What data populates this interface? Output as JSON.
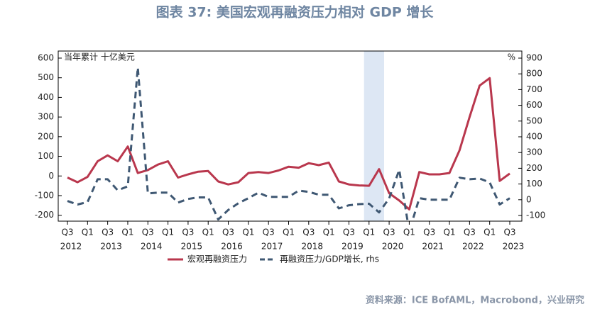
{
  "chart_data": {
    "type": "line",
    "title": "图表 37: 美国宏观再融资压力相对 GDP 增长",
    "unit_left": "当年累计 十亿美元",
    "unit_right": "%",
    "source": "资料来源：ICE BofAML，Macrobond，兴业研究",
    "categories": [
      "Q3",
      null,
      "Q1",
      null,
      "Q3",
      null,
      "Q1",
      null,
      "Q3",
      null,
      "Q1",
      null,
      "Q3",
      null,
      "Q1",
      null,
      "Q3",
      null,
      "Q1",
      null,
      "Q3",
      null,
      "Q1",
      null,
      "Q3",
      null,
      "Q1",
      null,
      "Q3",
      null,
      "Q1",
      null,
      "Q3",
      null,
      "Q1",
      null,
      "Q3",
      null,
      "Q1",
      null,
      "Q3",
      null,
      "Q1",
      null,
      "Q3"
    ],
    "years": [
      "2012",
      null,
      null,
      null,
      "2013",
      null,
      null,
      null,
      "2014",
      null,
      null,
      null,
      "2015",
      null,
      null,
      null,
      "2016",
      null,
      null,
      null,
      "2017",
      null,
      null,
      null,
      "2018",
      null,
      null,
      null,
      "2019",
      null,
      null,
      null,
      "2020",
      null,
      null,
      null,
      "2021",
      null,
      null,
      null,
      "2022",
      null,
      null,
      null,
      "2023"
    ],
    "highlight": {
      "from": 30,
      "to": 31,
      "color": "#dde7f4"
    },
    "series": [
      {
        "name": "宏观再融资压力",
        "color": "#b9374d",
        "dash": false,
        "values": [
          -8,
          -32,
          -5,
          75,
          105,
          75,
          150,
          15,
          30,
          58,
          75,
          -8,
          8,
          22,
          25,
          -28,
          -43,
          -32,
          15,
          20,
          15,
          28,
          47,
          42,
          65,
          55,
          68,
          -28,
          -43,
          -48,
          -50,
          35,
          -88,
          -125,
          -170,
          20,
          8,
          8,
          15,
          130,
          300,
          460,
          498,
          -25,
          12
        ]
      },
      {
        "name": "再融资压力/GDP增长, rhs",
        "color": "#3f5873",
        "dash": true,
        "axis": "y2",
        "values": [
          -8,
          -30,
          -15,
          130,
          130,
          60,
          85,
          840,
          40,
          45,
          45,
          -18,
          5,
          15,
          15,
          -125,
          -65,
          -22,
          10,
          45,
          18,
          18,
          18,
          58,
          50,
          32,
          32,
          -55,
          -35,
          -28,
          -25,
          -80,
          8,
          190,
          -200,
          10,
          0,
          0,
          0,
          140,
          130,
          135,
          110,
          -30,
          10
        ]
      }
    ],
    "ylim": [
      -230,
      636
    ],
    "yticks": [
      -200,
      -100,
      0,
      100,
      200,
      300,
      400,
      500,
      600
    ],
    "y2lim": [
      -136,
      945
    ],
    "y2ticks": [
      -100,
      0,
      100,
      200,
      300,
      400,
      500,
      600,
      700,
      800,
      900
    ]
  }
}
